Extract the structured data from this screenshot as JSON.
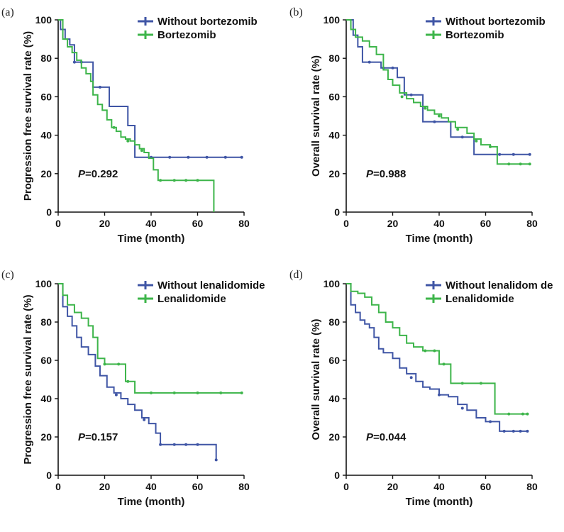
{
  "chart_data": [
    {
      "panel": "(a)",
      "type": "line",
      "ylabel": "Progression free survival rate (%)",
      "xlabel": "Time (month)",
      "xlim": [
        0,
        80
      ],
      "ylim": [
        0,
        100
      ],
      "xticks": [
        "0",
        "20",
        "40",
        "60",
        "80"
      ],
      "yticks": [
        "0",
        "20",
        "40",
        "60",
        "80",
        "100"
      ],
      "p_label": "P",
      "p_value": "=0.292",
      "legend_position": "top-right",
      "series": [
        {
          "name": "Without bortezomib",
          "color": "#3f55a5",
          "x": [
            0,
            1,
            3,
            5,
            7,
            12,
            15,
            18,
            22,
            30,
            33,
            40,
            48,
            56,
            64,
            72,
            79
          ],
          "y": [
            100,
            95,
            90,
            87,
            78,
            78,
            65,
            65,
            55,
            45,
            28.5,
            28.5,
            28.5,
            28.5,
            28.5,
            28.5,
            28.5
          ],
          "censors": [
            [
              7,
              78
            ],
            [
              10,
              78
            ],
            [
              18,
              65
            ],
            [
              40,
              28.5
            ],
            [
              48,
              28.5
            ],
            [
              56,
              28.5
            ],
            [
              64,
              28.5
            ],
            [
              72,
              28.5
            ],
            [
              79,
              28.5
            ]
          ]
        },
        {
          "name": "Bortezomib",
          "color": "#3db54a",
          "x": [
            0,
            2,
            4,
            6,
            8,
            10,
            12,
            14,
            15,
            17,
            19,
            21,
            23,
            25,
            27,
            29,
            31,
            33,
            35,
            37,
            39,
            41,
            43,
            46,
            50,
            55,
            60,
            66.5,
            67
          ],
          "y": [
            100,
            90,
            86,
            83,
            79,
            75,
            72,
            68,
            61,
            56,
            53,
            48,
            44,
            42,
            39,
            38,
            37,
            35,
            33,
            31,
            28,
            22,
            16.5,
            16.5,
            16.5,
            16.5,
            16.5,
            16.5,
            0
          ],
          "censors": [
            [
              24,
              44
            ],
            [
              30,
              37
            ],
            [
              36,
              32
            ],
            [
              44,
              16.5
            ],
            [
              50,
              16.5
            ],
            [
              55,
              16.5
            ],
            [
              60,
              16.5
            ]
          ]
        }
      ]
    },
    {
      "panel": "(b)",
      "type": "line",
      "ylabel": "Overall survival rate (%)",
      "xlabel": "Time (month)",
      "xlim": [
        0,
        80
      ],
      "ylim": [
        0,
        100
      ],
      "xticks": [
        "0",
        "20",
        "40",
        "60",
        "80"
      ],
      "yticks": [
        "0",
        "20",
        "40",
        "60",
        "80",
        "100"
      ],
      "p_label": "P",
      "p_value": "=0.988",
      "legend_position": "top-right",
      "series": [
        {
          "name": "Without bortezomib",
          "color": "#3f55a5",
          "x": [
            0,
            3,
            5,
            7,
            12,
            15,
            18,
            22,
            25,
            30,
            33,
            38,
            42,
            45,
            50,
            55,
            60,
            66,
            72,
            79
          ],
          "y": [
            100,
            92,
            86,
            78,
            78,
            75,
            75,
            70,
            61,
            61,
            47,
            47,
            47,
            39,
            39,
            30,
            30,
            30,
            30,
            30
          ],
          "censors": [
            [
              10,
              78
            ],
            [
              16,
              75
            ],
            [
              20,
              75
            ],
            [
              28,
              61
            ],
            [
              38,
              47
            ],
            [
              50,
              39
            ],
            [
              66,
              30
            ],
            [
              72,
              30
            ],
            [
              79,
              30
            ]
          ]
        },
        {
          "name": "Bortezomib",
          "color": "#3db54a",
          "x": [
            0,
            2,
            4,
            7,
            10,
            13,
            16,
            18,
            20,
            23,
            26,
            29,
            32,
            35,
            38,
            41,
            44,
            47,
            52,
            55,
            58,
            62,
            65,
            70,
            75,
            79
          ],
          "y": [
            100,
            95,
            91,
            89,
            86,
            82,
            74,
            69,
            66,
            62,
            59,
            57,
            55,
            53,
            51,
            49,
            47,
            44,
            41,
            38,
            35,
            34,
            25,
            25,
            25,
            25
          ],
          "censors": [
            [
              24,
              60
            ],
            [
              34,
              54
            ],
            [
              40,
              50
            ],
            [
              48,
              43
            ],
            [
              56,
              37
            ],
            [
              62,
              34
            ],
            [
              70,
              25
            ],
            [
              75,
              25
            ],
            [
              79,
              25
            ]
          ]
        }
      ]
    },
    {
      "panel": "(c)",
      "type": "line",
      "ylabel": "Progression free survival rate (%)",
      "xlabel": "Time (month)",
      "xlim": [
        0,
        80
      ],
      "ylim": [
        0,
        100
      ],
      "xticks": [
        "0",
        "20",
        "40",
        "60",
        "80"
      ],
      "yticks": [
        "0",
        "20",
        "40",
        "60",
        "80",
        "100"
      ],
      "p_label": "P",
      "p_value": "=0.157",
      "legend_position": "top-right",
      "series": [
        {
          "name": "Without lenalidomide",
          "color": "#3f55a5",
          "x": [
            0,
            2,
            4,
            6,
            8,
            10,
            13,
            16,
            18,
            21,
            24,
            27,
            30,
            33,
            36,
            39,
            42,
            44,
            50,
            55,
            60,
            67,
            68
          ],
          "y": [
            100,
            88,
            83,
            78,
            72,
            67,
            63,
            57,
            52,
            46,
            43,
            40,
            37,
            34,
            30,
            27,
            22,
            16,
            16,
            16,
            16,
            16,
            8
          ],
          "censors": [
            [
              25,
              42
            ],
            [
              37,
              29
            ],
            [
              44,
              16
            ],
            [
              50,
              16
            ],
            [
              55,
              16
            ],
            [
              60,
              16
            ],
            [
              68,
              8
            ]
          ]
        },
        {
          "name": "Lenalidomide",
          "color": "#3db54a",
          "x": [
            0,
            2,
            4,
            7,
            10,
            13,
            15,
            17,
            20,
            25,
            29,
            33,
            40,
            50,
            60,
            70,
            79
          ],
          "y": [
            100,
            94,
            89,
            85,
            82,
            78,
            72,
            61,
            58,
            58,
            49,
            43,
            43,
            43,
            43,
            43,
            43
          ],
          "censors": [
            [
              20,
              58
            ],
            [
              26,
              58
            ],
            [
              30,
              49
            ],
            [
              40,
              43
            ],
            [
              50,
              43
            ],
            [
              60,
              43
            ],
            [
              70,
              43
            ],
            [
              79,
              43
            ]
          ]
        }
      ]
    },
    {
      "panel": "(d)",
      "type": "line",
      "ylabel": "Overall survival rate (%)",
      "xlabel": "Time (month)",
      "xlim": [
        0,
        80
      ],
      "ylim": [
        0,
        100
      ],
      "xticks": [
        "0",
        "20",
        "40",
        "60",
        "80"
      ],
      "yticks": [
        "0",
        "20",
        "40",
        "60",
        "80",
        "100"
      ],
      "p_label": "P",
      "p_value": "=0.044",
      "legend_position": "top-right",
      "series": [
        {
          "name": "Without lenalidom de",
          "color": "#3f55a5",
          "x": [
            0,
            2,
            4,
            6,
            8,
            10,
            12,
            14,
            16,
            20,
            23,
            26,
            30,
            33,
            36,
            40,
            44,
            48,
            52,
            56,
            60,
            64,
            66,
            70,
            75,
            78
          ],
          "y": [
            100,
            89,
            85,
            81,
            79,
            77,
            72,
            66,
            64,
            61,
            56,
            53,
            49,
            46,
            45,
            42,
            41,
            37,
            34,
            30,
            28,
            28,
            23,
            23,
            23,
            23
          ],
          "censors": [
            [
              28,
              51
            ],
            [
              40,
              42
            ],
            [
              50,
              35
            ],
            [
              62,
              28
            ],
            [
              68,
              23
            ],
            [
              72,
              23
            ],
            [
              75,
              23
            ],
            [
              78,
              23
            ]
          ]
        },
        {
          "name": "Lenalidomide",
          "color": "#3db54a",
          "x": [
            0,
            2,
            5,
            8,
            11,
            14,
            17,
            20,
            23,
            26,
            29,
            33,
            36,
            40,
            45,
            50,
            55,
            60,
            64,
            68,
            72,
            76,
            78
          ],
          "y": [
            100,
            96,
            95,
            93,
            89,
            85,
            80,
            77,
            73,
            69,
            67,
            65,
            65,
            58,
            48,
            48,
            48,
            48,
            32,
            32,
            32,
            32,
            32
          ],
          "censors": [
            [
              34,
              65
            ],
            [
              38,
              65
            ],
            [
              42,
              58
            ],
            [
              50,
              48
            ],
            [
              58,
              48
            ],
            [
              70,
              32
            ],
            [
              76,
              32
            ],
            [
              78,
              32
            ]
          ]
        }
      ]
    }
  ]
}
